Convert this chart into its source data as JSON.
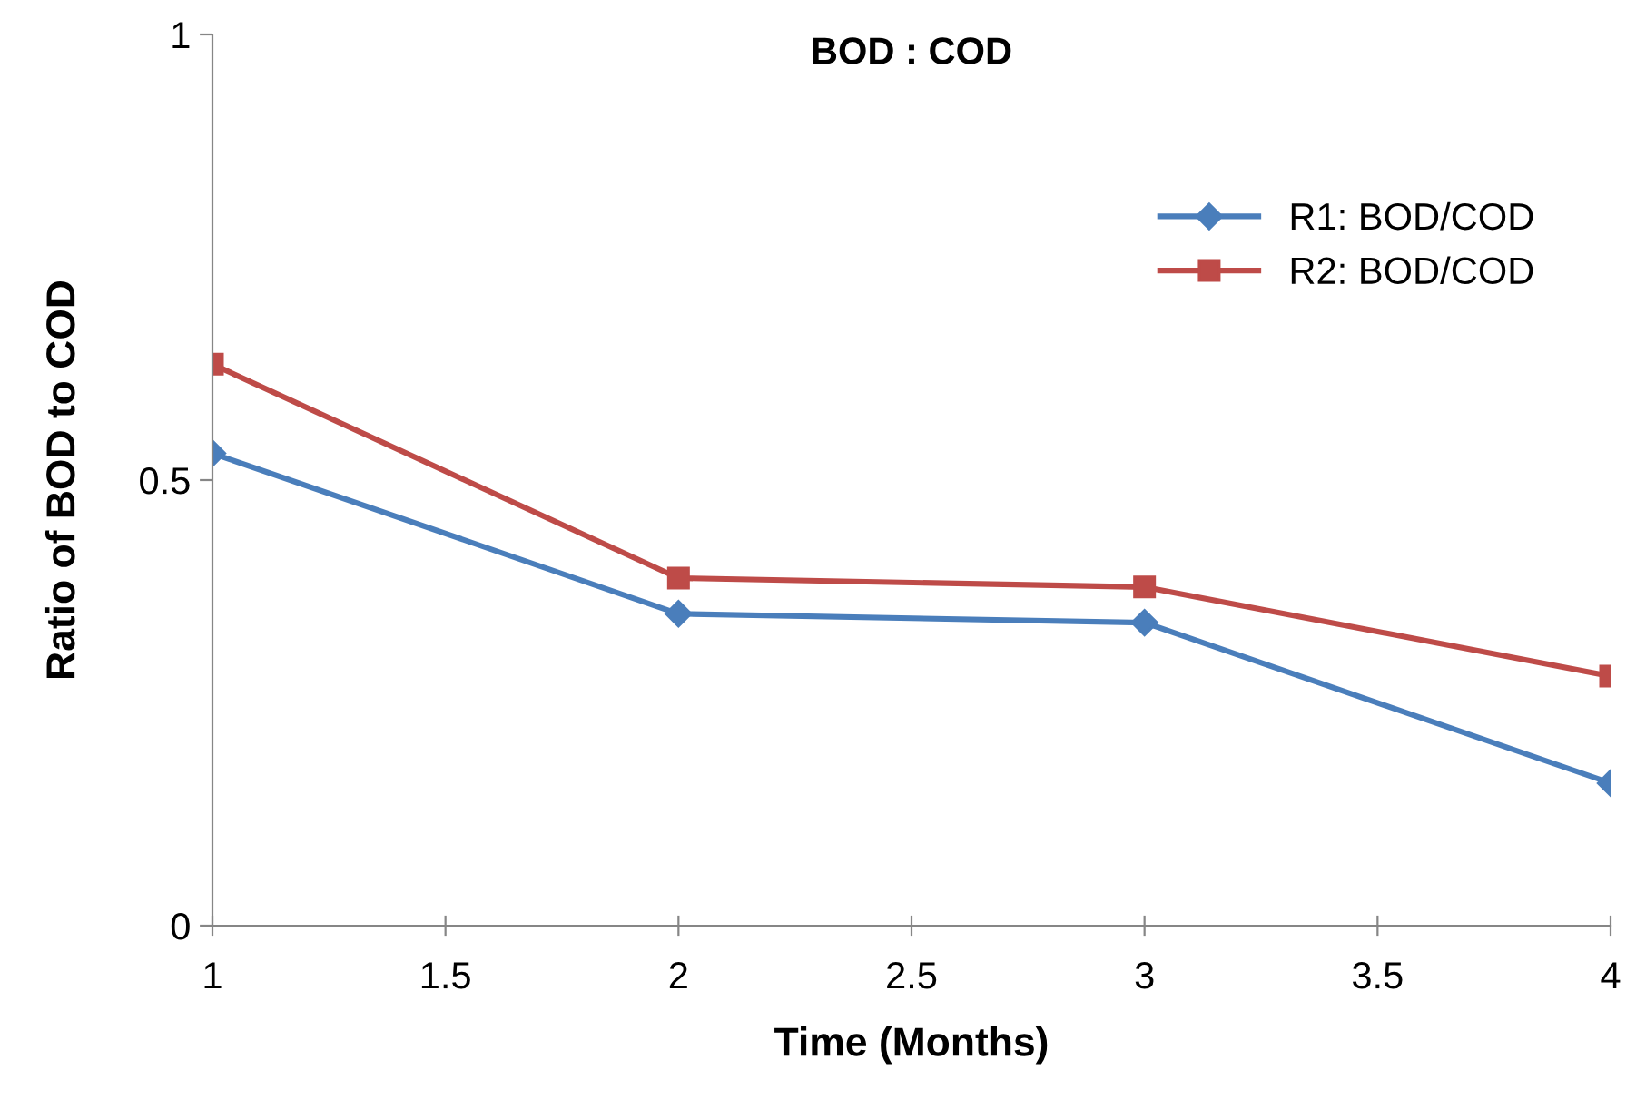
{
  "chart_data": {
    "type": "line",
    "title": "BOD : COD",
    "xlabel": "Time (Months)",
    "ylabel": "Ratio of BOD to COD",
    "x": [
      1,
      2,
      3,
      4
    ],
    "series": [
      {
        "name": "R1: BOD/COD",
        "color": "#4a7ebb",
        "marker": "diamond",
        "values": [
          0.53,
          0.35,
          0.34,
          0.16
        ]
      },
      {
        "name": "R2: BOD/COD",
        "color": "#be4b48",
        "marker": "square",
        "values": [
          0.63,
          0.39,
          0.38,
          0.28
        ]
      }
    ],
    "xlim": [
      1,
      4
    ],
    "xticks": [
      1,
      1.5,
      2,
      2.5,
      3,
      3.5,
      4
    ],
    "ylim": [
      0,
      1
    ],
    "yticks": [
      0,
      0.5,
      1
    ],
    "grid": false,
    "legend": "top right",
    "line_style": "solid"
  }
}
